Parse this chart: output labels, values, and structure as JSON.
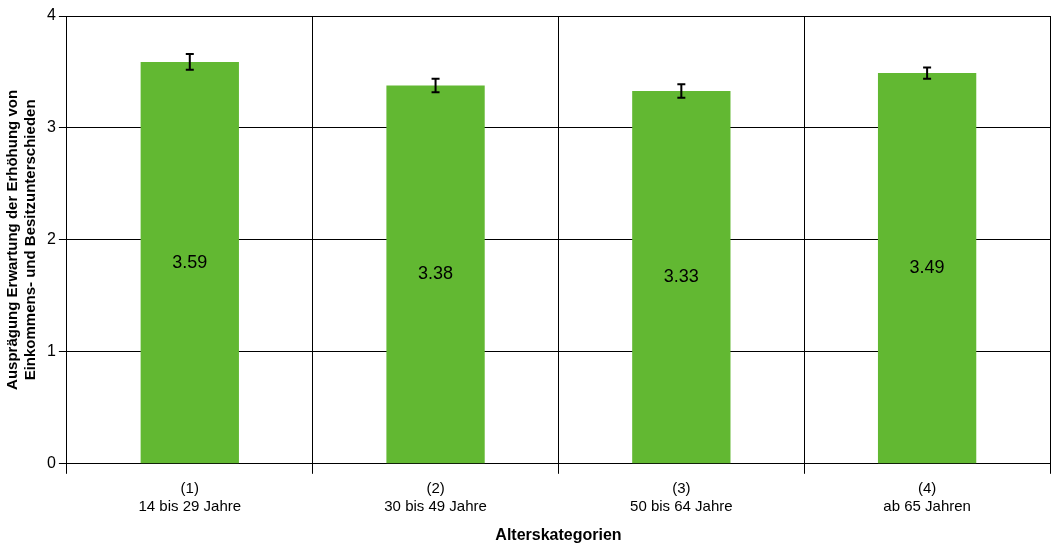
{
  "chart_data": {
    "type": "bar",
    "xlabel": "Alterskategorien",
    "ylabel": "Ausprägung Erwartung der Erhöhung von Einkommens- und Besitzunterschieden",
    "categories": [
      "(1)\n14 bis 29 Jahre",
      "(2)\n30 bis 49 Jahre",
      "(3)\n50 bis 64 Jahre",
      "(4)\nab 65 Jahren"
    ],
    "values": [
      3.59,
      3.38,
      3.33,
      3.49
    ],
    "color": "#62b832",
    "errors": [
      0.07,
      0.06,
      0.06,
      0.05
    ],
    "ylim": [
      0,
      4
    ],
    "yticks": [
      0,
      1,
      2,
      3,
      4
    ],
    "grid": true,
    "data_labels": true,
    "legend": false
  }
}
